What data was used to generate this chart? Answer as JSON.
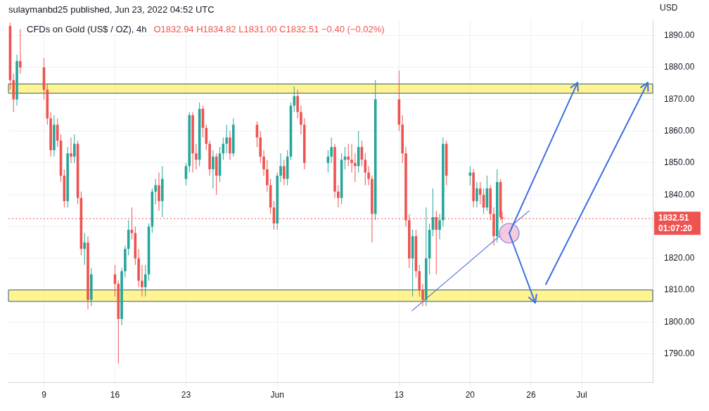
{
  "chart_data": {
    "type": "candlestick",
    "title": "CFDs on Gold (US$ / OZ), 4h",
    "subtitle": "O1832.94 H1834.82 L1831.00 C1832.51 −0.40 (−0.02%)",
    "ylabel": "USD",
    "annotations": [
      "sulaymanbd25 published, Jun 23, 2022 04:52 UTC",
      "01:07:20"
    ],
    "x": [
      "2022-05-05T16:00",
      "2022-05-06T00:00",
      "2022-05-06T08:00",
      "2022-05-06T16:00",
      "2022-05-09T00:00",
      "2022-05-09T08:00",
      "2022-05-09T16:00",
      "2022-05-10T00:00",
      "2022-05-10T08:00",
      "2022-05-10T16:00",
      "2022-05-11T00:00",
      "2022-05-11T08:00",
      "2022-05-11T16:00",
      "2022-05-12T00:00",
      "2022-05-12T08:00",
      "2022-05-12T16:00",
      "2022-05-13T00:00",
      "2022-05-13T08:00",
      "2022-05-13T16:00",
      "2022-05-16T00:00",
      "2022-05-16T08:00",
      "2022-05-16T16:00",
      "2022-05-17T00:00",
      "2022-05-17T08:00",
      "2022-05-17T16:00",
      "2022-05-18T00:00",
      "2022-05-18T08:00",
      "2022-05-18T16:00",
      "2022-05-19T00:00",
      "2022-05-19T08:00",
      "2022-05-19T16:00",
      "2022-05-20T00:00",
      "2022-05-20T08:00",
      "2022-05-20T16:00",
      "2022-05-23T00:00",
      "2022-05-23T08:00",
      "2022-05-23T16:00",
      "2022-05-24T00:00",
      "2022-05-24T08:00",
      "2022-05-24T16:00",
      "2022-05-25T00:00",
      "2022-05-25T08:00",
      "2022-05-25T16:00",
      "2022-05-26T00:00",
      "2022-05-26T08:00",
      "2022-05-26T16:00",
      "2022-05-27T00:00",
      "2022-05-27T08:00",
      "2022-05-27T16:00",
      "2022-05-30T00:00",
      "2022-05-30T08:00",
      "2022-05-30T16:00",
      "2022-05-31T00:00",
      "2022-05-31T08:00",
      "2022-05-31T16:00",
      "2022-06-01T00:00",
      "2022-06-01T08:00",
      "2022-06-01T16:00",
      "2022-06-02T00:00",
      "2022-06-02T08:00",
      "2022-06-02T16:00",
      "2022-06-03T00:00",
      "2022-06-03T08:00",
      "2022-06-03T16:00",
      "2022-06-06T00:00",
      "2022-06-06T08:00",
      "2022-06-06T16:00",
      "2022-06-07T00:00",
      "2022-06-07T08:00",
      "2022-06-07T16:00",
      "2022-06-08T00:00",
      "2022-06-08T08:00",
      "2022-06-08T16:00",
      "2022-06-09T00:00",
      "2022-06-09T08:00",
      "2022-06-09T16:00",
      "2022-06-10T00:00",
      "2022-06-10T08:00",
      "2022-06-10T16:00",
      "2022-06-13T00:00",
      "2022-06-13T08:00",
      "2022-06-13T16:00",
      "2022-06-14T00:00",
      "2022-06-14T08:00",
      "2022-06-14T16:00",
      "2022-06-15T00:00",
      "2022-06-15T08:00",
      "2022-06-15T16:00",
      "2022-06-16T00:00",
      "2022-06-16T08:00",
      "2022-06-16T16:00",
      "2022-06-17T00:00",
      "2022-06-17T08:00",
      "2022-06-17T16:00",
      "2022-06-20T00:00",
      "2022-06-20T08:00",
      "2022-06-20T16:00",
      "2022-06-21T00:00",
      "2022-06-21T08:00",
      "2022-06-21T16:00",
      "2022-06-22T00:00",
      "2022-06-22T08:00",
      "2022-06-22T16:00",
      "2022-06-23T00:00",
      "2022-06-23T04:00"
    ],
    "ohlc": [
      [
        1893,
        1894,
        1873,
        1876
      ],
      [
        1876,
        1878,
        1866,
        1870
      ],
      [
        1870,
        1884,
        1868,
        1882
      ],
      [
        1882,
        1892,
        1878,
        1880
      ],
      [
        1880,
        1883,
        1870,
        1873
      ],
      [
        1873,
        1875,
        1862,
        1864
      ],
      [
        1864,
        1866,
        1852,
        1854
      ],
      [
        1854,
        1865,
        1852,
        1862
      ],
      [
        1862,
        1864,
        1855,
        1857
      ],
      [
        1857,
        1859,
        1844,
        1846
      ],
      [
        1846,
        1848,
        1836,
        1838
      ],
      [
        1838,
        1855,
        1836,
        1853
      ],
      [
        1853,
        1858,
        1850,
        1852
      ],
      [
        1852,
        1859,
        1850,
        1856
      ],
      [
        1856,
        1857,
        1837,
        1839
      ],
      [
        1839,
        1841,
        1821,
        1823
      ],
      [
        1823,
        1828,
        1818,
        1825
      ],
      [
        1825,
        1827,
        1804,
        1807
      ],
      [
        1807,
        1817,
        1805,
        1815
      ],
      [
        1815,
        1818,
        1808,
        1812
      ],
      [
        1812,
        1813,
        1787,
        1801
      ],
      [
        1801,
        1817,
        1799,
        1816
      ],
      [
        1816,
        1824,
        1814,
        1823
      ],
      [
        1823,
        1832,
        1821,
        1829
      ],
      [
        1829,
        1836,
        1826,
        1828
      ],
      [
        1828,
        1830,
        1818,
        1820
      ],
      [
        1820,
        1823,
        1811,
        1813
      ],
      [
        1813,
        1818,
        1808,
        1811
      ],
      [
        1811,
        1818,
        1808,
        1815
      ],
      [
        1815,
        1831,
        1813,
        1830
      ],
      [
        1830,
        1842,
        1828,
        1841
      ],
      [
        1841,
        1845,
        1837,
        1843
      ],
      [
        1843,
        1847,
        1835,
        1838
      ],
      [
        1838,
        1849,
        1833,
        1845
      ],
      [
        1845,
        1850,
        1843,
        1849
      ],
      [
        1849,
        1866,
        1847,
        1865
      ],
      [
        1865,
        1866,
        1847,
        1853
      ],
      [
        1853,
        1856,
        1848,
        1851
      ],
      [
        1851,
        1869,
        1849,
        1867
      ],
      [
        1867,
        1868,
        1858,
        1861
      ],
      [
        1861,
        1862,
        1854,
        1856
      ],
      [
        1856,
        1857,
        1846,
        1848
      ],
      [
        1848,
        1854,
        1842,
        1852
      ],
      [
        1852,
        1853,
        1840,
        1846
      ],
      [
        1846,
        1855,
        1844,
        1853
      ],
      [
        1853,
        1858,
        1851,
        1856
      ],
      [
        1856,
        1862,
        1853,
        1858
      ],
      [
        1858,
        1860,
        1851,
        1853
      ],
      [
        1853,
        1864,
        1852,
        1862
      ],
      [
        1862,
        1863,
        1855,
        1858
      ],
      [
        1858,
        1860,
        1850,
        1852
      ],
      [
        1852,
        1854,
        1846,
        1848
      ],
      [
        1848,
        1851,
        1841,
        1843
      ],
      [
        1843,
        1845,
        1834,
        1836
      ],
      [
        1836,
        1838,
        1829,
        1831
      ],
      [
        1831,
        1847,
        1829,
        1846
      ],
      [
        1846,
        1853,
        1844,
        1849
      ],
      [
        1849,
        1851,
        1843,
        1845
      ],
      [
        1845,
        1854,
        1843,
        1852
      ],
      [
        1852,
        1869,
        1851,
        1868
      ],
      [
        1868,
        1874,
        1866,
        1871
      ],
      [
        1871,
        1873,
        1864,
        1866
      ],
      [
        1866,
        1868,
        1859,
        1862
      ],
      [
        1862,
        1864,
        1848,
        1850
      ],
      [
        1850,
        1854,
        1847,
        1852
      ],
      [
        1852,
        1858,
        1850,
        1855
      ],
      [
        1855,
        1856,
        1839,
        1841
      ],
      [
        1841,
        1843,
        1836,
        1839
      ],
      [
        1839,
        1853,
        1837,
        1851
      ],
      [
        1851,
        1855,
        1848,
        1852
      ],
      [
        1852,
        1856,
        1849,
        1851
      ],
      [
        1851,
        1856,
        1847,
        1850
      ],
      [
        1850,
        1853,
        1844,
        1849
      ],
      [
        1849,
        1860,
        1847,
        1855
      ],
      [
        1855,
        1857,
        1849,
        1851
      ],
      [
        1851,
        1853,
        1843,
        1847
      ],
      [
        1847,
        1849,
        1843,
        1845
      ],
      [
        1845,
        1846,
        1825,
        1834
      ],
      [
        1834,
        1876,
        1832,
        1870
      ],
      [
        1870,
        1879,
        1860,
        1862
      ],
      [
        1862,
        1865,
        1850,
        1853
      ],
      [
        1853,
        1855,
        1830,
        1832
      ],
      [
        1832,
        1834,
        1817,
        1820
      ],
      [
        1820,
        1829,
        1808,
        1827
      ],
      [
        1827,
        1829,
        1814,
        1816
      ],
      [
        1816,
        1818,
        1808,
        1810
      ],
      [
        1810,
        1812,
        1805,
        1807
      ],
      [
        1807,
        1836,
        1805,
        1820
      ],
      [
        1820,
        1831,
        1815,
        1829
      ],
      [
        1829,
        1842,
        1827,
        1833
      ],
      [
        1833,
        1835,
        1815,
        1829
      ],
      [
        1829,
        1834,
        1826,
        1832
      ],
      [
        1832,
        1858,
        1830,
        1856
      ],
      [
        1856,
        1857,
        1843,
        1846
      ],
      [
        1846,
        1849,
        1843,
        1847
      ],
      [
        1847,
        1848,
        1836,
        1838
      ],
      [
        1838,
        1844,
        1836,
        1842
      ],
      [
        1842,
        1844,
        1837,
        1840
      ],
      [
        1840,
        1842,
        1834,
        1836
      ],
      [
        1836,
        1846,
        1835,
        1842
      ],
      [
        1842,
        1843,
        1832,
        1834
      ],
      [
        1834,
        1836,
        1824,
        1827
      ],
      [
        1827,
        1848,
        1825,
        1844
      ],
      [
        1844,
        1845,
        1832,
        1832.94
      ],
      [
        1832.94,
        1834.82,
        1831.0,
        1832.51
      ]
    ],
    "series": [
      {
        "type": "line",
        "x": [
          "2022-06-14T06:00",
          "2022-06-25T20:00"
        ],
        "values": [
          1803.5,
          1835
        ],
        "color": "#4a6fd8"
      }
    ],
    "xlim": [
      "2022-05-05T12:00",
      "2022-07-08T00:00"
    ],
    "xticks": [
      {
        "value": "2022-05-09",
        "label": "9"
      },
      {
        "value": "2022-05-16",
        "label": "16"
      },
      {
        "value": "2022-05-23",
        "label": "23"
      },
      {
        "value": "2022-06-01",
        "label": "Jun"
      },
      {
        "value": "2022-06-13",
        "label": "13"
      },
      {
        "value": "2022-06-20",
        "label": "20"
      },
      {
        "value": "2022-06-26",
        "label": "26"
      },
      {
        "value": "2022-07-01",
        "label": "Jul"
      }
    ],
    "ylim": [
      1781,
      1895
    ],
    "yticks": [
      {
        "value": 1790,
        "label": "1790.00"
      },
      {
        "value": 1800,
        "label": "1800.00"
      },
      {
        "value": 1810,
        "label": "1810.00"
      },
      {
        "value": 1820,
        "label": "1820.00"
      },
      {
        "value": 1830,
        "label": null
      },
      {
        "value": 1840,
        "label": "1840.00"
      },
      {
        "value": 1850,
        "label": "1850.00"
      },
      {
        "value": 1860,
        "label": "1860.00"
      },
      {
        "value": 1870,
        "label": "1870.00"
      },
      {
        "value": 1880,
        "label": "1880.00"
      },
      {
        "value": 1890,
        "label": "1890.00"
      }
    ],
    "ref_lines": [
      {
        "axis": "y",
        "value": 1832.51,
        "label": "1832.51",
        "color": "#ef5350",
        "line_style": "dotted"
      }
    ],
    "bands": [
      {
        "axis": "y",
        "from": 1871.9,
        "to": 1874.8,
        "color": "#fff176"
      },
      {
        "axis": "y",
        "from": 1806.5,
        "to": 1810.1,
        "color": "#fff176"
      }
    ],
    "grid": true,
    "legend": false
  }
}
